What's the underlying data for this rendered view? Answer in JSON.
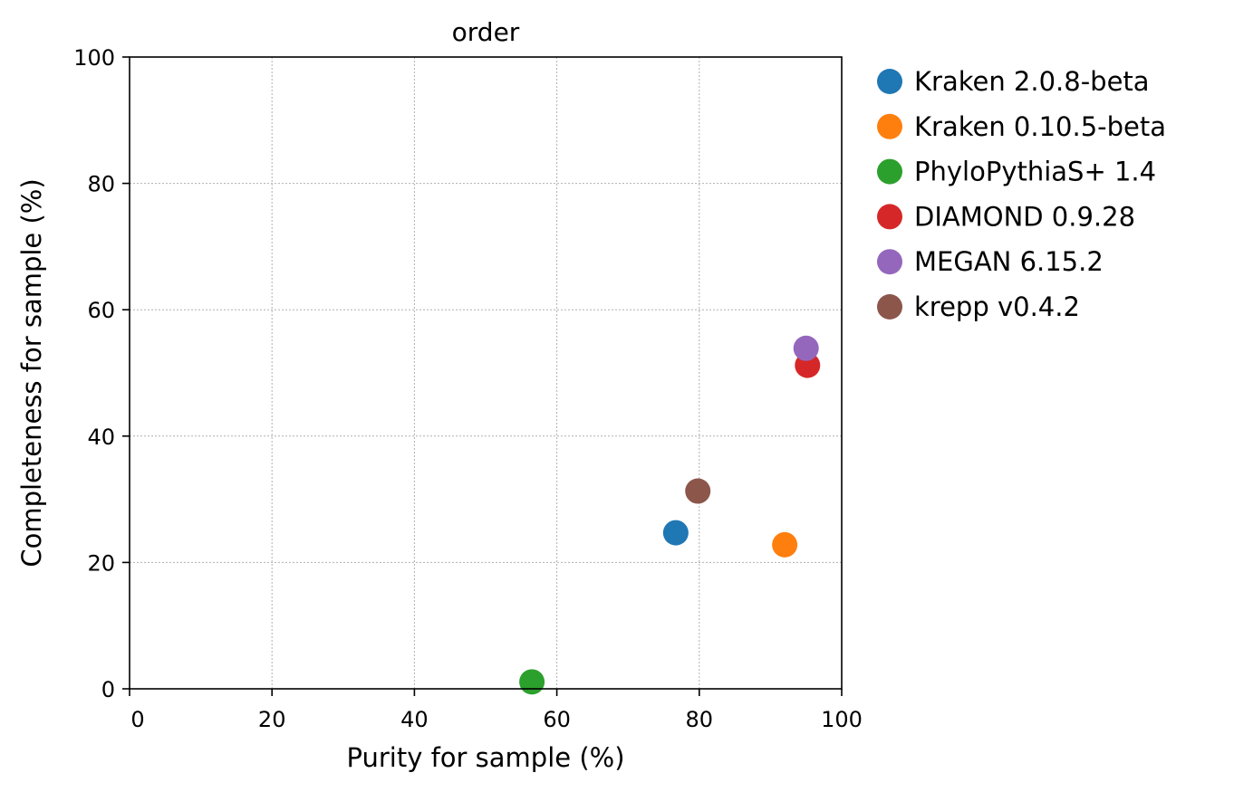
{
  "chart_data": {
    "type": "scatter",
    "title": "order",
    "xlabel": "Purity for sample (%)",
    "ylabel": "Completeness for sample (%)",
    "xlim": [
      0,
      100
    ],
    "ylim": [
      0,
      100
    ],
    "xticks": [
      0,
      20,
      40,
      60,
      80,
      100
    ],
    "yticks": [
      0,
      20,
      40,
      60,
      80,
      100
    ],
    "grid": true,
    "legend_position": "outside-right-top",
    "series": [
      {
        "name": "Kraken 2.0.8-beta",
        "color": "#1f77b4",
        "x": [
          76.7
        ],
        "y": [
          24.7
        ]
      },
      {
        "name": "Kraken 0.10.5-beta",
        "color": "#ff7f0e",
        "x": [
          92.0
        ],
        "y": [
          22.8
        ]
      },
      {
        "name": "PhyloPythiaS+ 1.4",
        "color": "#2ca02c",
        "x": [
          56.5
        ],
        "y": [
          1.1
        ]
      },
      {
        "name": "DIAMOND 0.9.28",
        "color": "#d62728",
        "x": [
          95.2
        ],
        "y": [
          51.2
        ]
      },
      {
        "name": "MEGAN 6.15.2",
        "color": "#9467bd",
        "x": [
          95.0
        ],
        "y": [
          53.9
        ]
      },
      {
        "name": "krepp v0.4.2",
        "color": "#8c564b",
        "x": [
          79.8
        ],
        "y": [
          31.3
        ]
      }
    ]
  }
}
